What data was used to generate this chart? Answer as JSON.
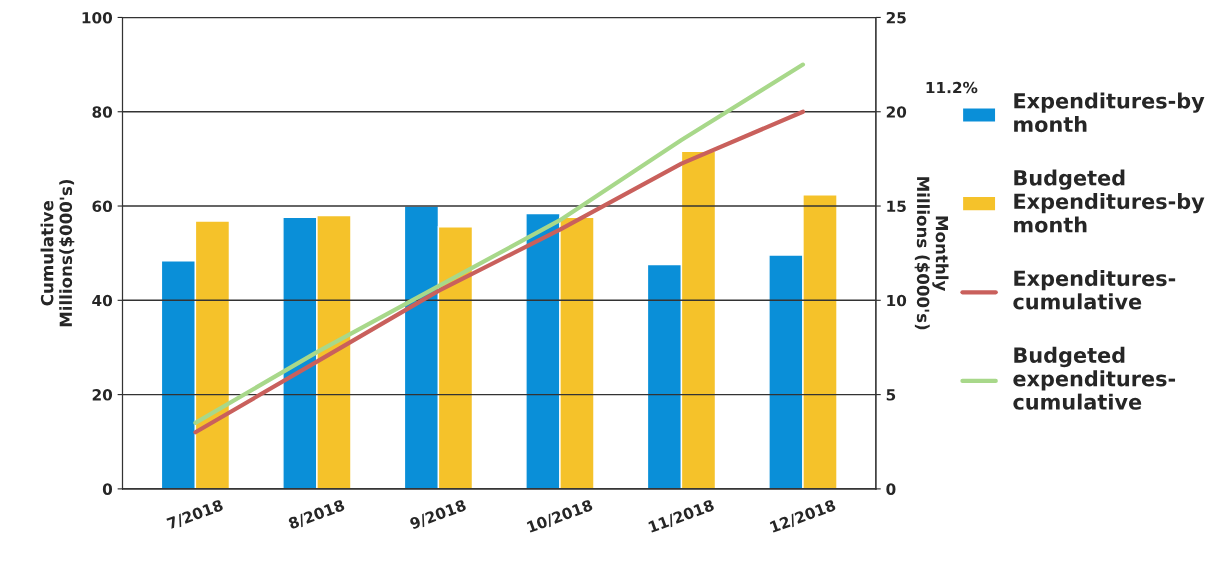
{
  "chart_data": {
    "type": "bar",
    "categories": [
      "7/2018",
      "8/2018",
      "9/2018",
      "10/2018",
      "11/2018",
      "12/2018"
    ],
    "ylabel": "Cumulative\nMillions($000's)",
    "y2label": "Monthly\nMillions ($000's)",
    "ylim": [
      0,
      100
    ],
    "yticks": [
      0,
      20,
      40,
      60,
      80,
      100
    ],
    "y2lim": [
      0,
      25
    ],
    "y2ticks": [
      0,
      5,
      10,
      15,
      20,
      25
    ],
    "grid": "y",
    "legend": "right",
    "annotations": [
      "11.2%"
    ],
    "series": [
      {
        "name": "Expenditures-by\nmonth",
        "axis": "y2",
        "color": "#0a8fd8",
        "values": [
          12.1,
          14.4,
          15.0,
          14.6,
          11.9,
          12.4
        ]
      },
      {
        "name": "Budgeted\nExpenditures-by\nmonth",
        "axis": "y2",
        "color": "#f5c22a",
        "values": [
          14.2,
          14.5,
          13.9,
          14.4,
          17.9,
          15.6
        ]
      },
      {
        "name": "Expenditures-\ncumulative",
        "type": "line",
        "axis": "y",
        "color": "#c9605c",
        "values": [
          12,
          27,
          42,
          55,
          69,
          80
        ]
      },
      {
        "name": "Budgeted\nexpenditures-\ncumulative",
        "type": "line",
        "axis": "y",
        "color": "#a8d88a",
        "values": [
          14,
          29,
          43,
          57,
          74,
          90
        ]
      }
    ]
  }
}
